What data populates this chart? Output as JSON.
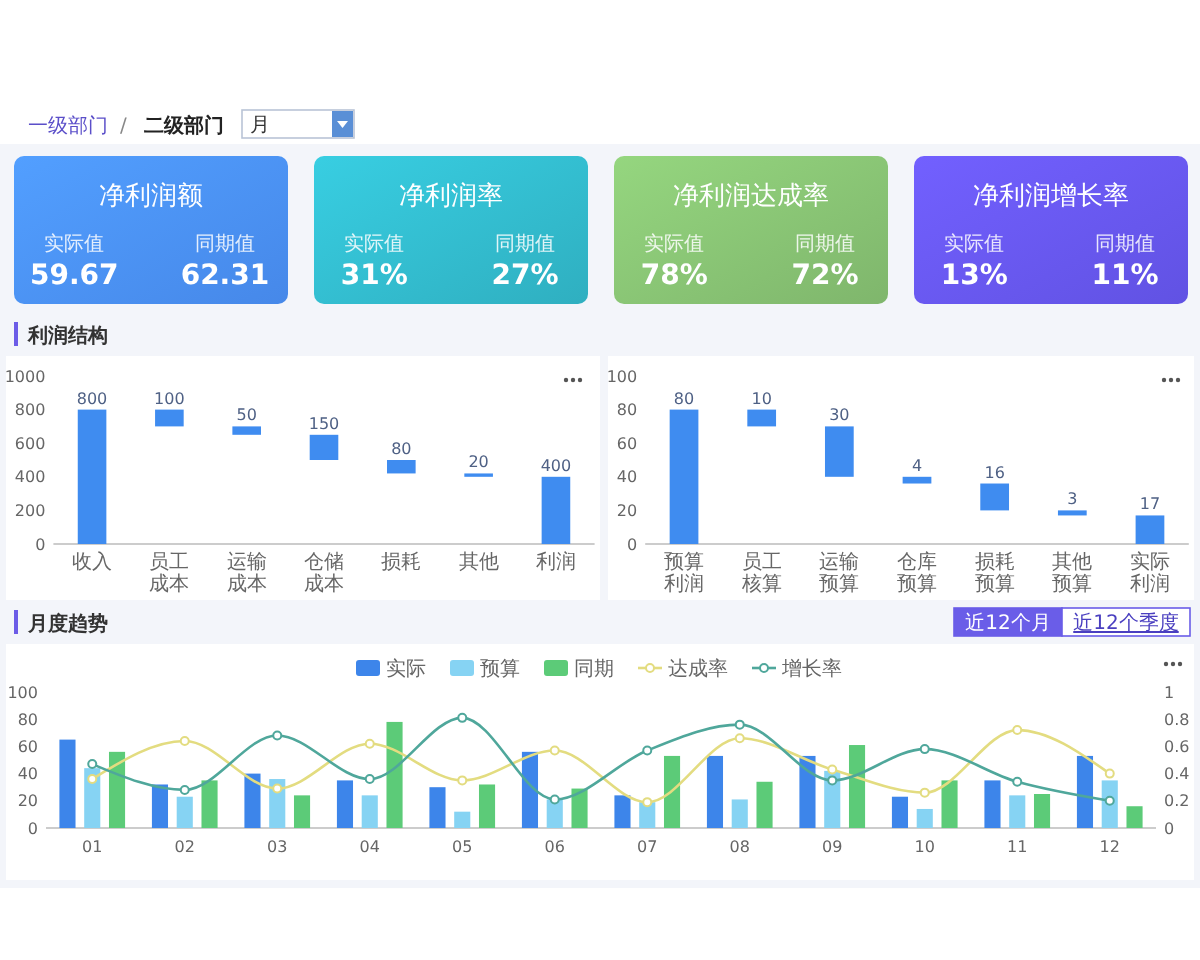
{
  "chart_data": [
    {
      "type": "other",
      "annotations": [
        "一级部门",
        "/",
        "二级部门",
        "月"
      ]
    },
    {
      "type": "other",
      "title": "净利润额",
      "color": "#4a8ff6",
      "annotations": [
        "实际值",
        "59.67",
        "同期值",
        "62.31"
      ]
    },
    {
      "type": "other",
      "title": "净利润率",
      "color": "#32b9cb",
      "annotations": [
        "实际值",
        "31%",
        "同期值",
        "27%"
      ]
    },
    {
      "type": "other",
      "title": "净利润达成率",
      "color": "#86c072",
      "annotations": [
        "实际值",
        "78%",
        "同期值",
        "72%"
      ]
    },
    {
      "type": "other",
      "title": "净利润增长率",
      "color": "#6656f0",
      "annotations": [
        "实际值",
        "13%",
        "同期值",
        "11%"
      ]
    },
    {
      "type": "bar",
      "title": "利润结构",
      "categories": [
        "收入",
        "员工成本",
        "运输成本",
        "仓储成本",
        "损耗",
        "其他",
        "利润"
      ],
      "values": [
        800,
        100,
        50,
        150,
        80,
        20,
        400
      ],
      "base": [
        0,
        700,
        650,
        500,
        420,
        400,
        0
      ],
      "color": "#3f8cf0",
      "ylim": [
        0,
        1000
      ],
      "yticks": [
        0,
        200,
        400,
        600,
        800,
        1000
      ],
      "data_labels": true
    },
    {
      "type": "bar",
      "categories": [
        "预算利润",
        "员工核算",
        "运输预算",
        "仓库预算",
        "损耗预算",
        "其他预算",
        "实际利润"
      ],
      "values": [
        80,
        10,
        30,
        4,
        16,
        3,
        17
      ],
      "base": [
        0,
        70,
        40,
        36,
        20,
        17,
        0
      ],
      "color": "#3f8cf0",
      "ylim": [
        0,
        100
      ],
      "yticks": [
        0,
        20,
        40,
        60,
        80,
        100
      ],
      "data_labels": true
    },
    {
      "type": "bar",
      "title": "月度趋势",
      "annotations": [
        "近12个月",
        "近12个季度"
      ],
      "categories": [
        "01",
        "02",
        "03",
        "04",
        "05",
        "06",
        "07",
        "08",
        "09",
        "10",
        "11",
        "12"
      ],
      "series": [
        {
          "name": "实际",
          "color": "#3d85ea",
          "values": [
            65,
            32,
            40,
            35,
            30,
            56,
            24,
            53,
            53,
            23,
            35,
            53
          ]
        },
        {
          "name": "预算",
          "color": "#86d3f3",
          "values": [
            44,
            23,
            36,
            24,
            12,
            21,
            19,
            21,
            42,
            14,
            24,
            35
          ]
        },
        {
          "name": "同期",
          "color": "#5ccb78",
          "values": [
            56,
            35,
            24,
            78,
            32,
            29,
            53,
            34,
            61,
            35,
            25,
            16
          ]
        },
        {
          "name": "达成率",
          "type": "line",
          "axis": "y2",
          "color": "#e3dc80",
          "values": [
            0.36,
            0.64,
            0.29,
            0.62,
            0.35,
            0.57,
            0.19,
            0.66,
            0.43,
            0.26,
            0.72,
            0.4
          ]
        },
        {
          "name": "增长率",
          "type": "line",
          "axis": "y2",
          "color": "#4fa79b",
          "values": [
            0.47,
            0.28,
            0.68,
            0.36,
            0.81,
            0.21,
            0.57,
            0.76,
            0.35,
            0.58,
            0.34,
            0.2
          ]
        }
      ],
      "ylim": [
        0,
        100
      ],
      "yticks": [
        0,
        20,
        40,
        60,
        80,
        100
      ],
      "y2lim": [
        0,
        1
      ],
      "y2ticks": [
        0,
        0.2,
        0.4,
        0.6,
        0.8,
        1
      ],
      "legend": "top",
      "marker": "circle"
    }
  ]
}
